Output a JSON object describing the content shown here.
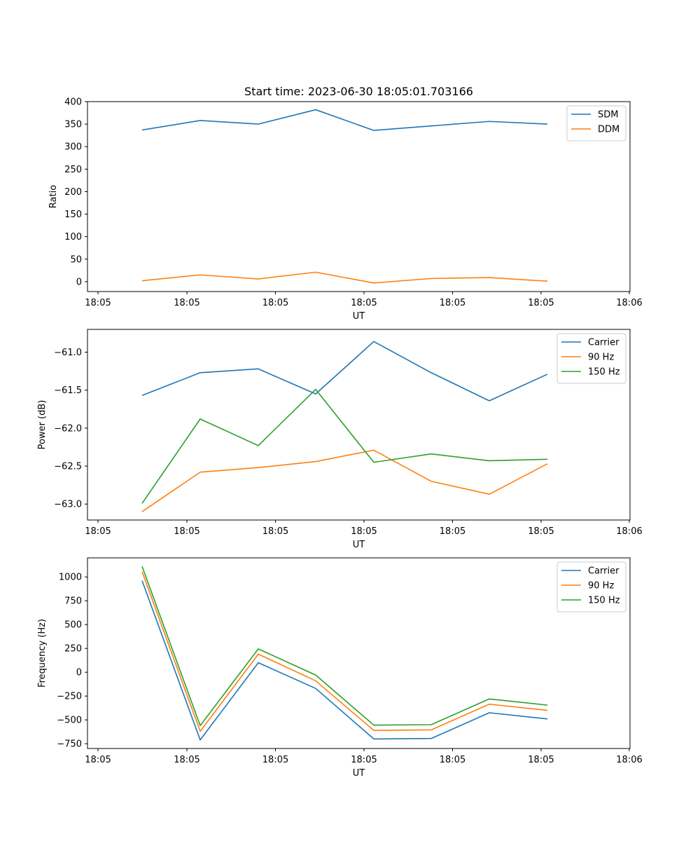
{
  "title": "Start time: 2023-06-30 18:05:01.703166",
  "chart_data": [
    {
      "type": "line",
      "xlabel": "UT",
      "ylabel": "Ratio",
      "x_tick_labels": [
        "18:05",
        "18:05",
        "18:05",
        "18:05",
        "18:05",
        "18:05",
        "18:06"
      ],
      "ylim": [
        -22,
        400
      ],
      "y_ticks": [
        0,
        50,
        100,
        150,
        200,
        250,
        300,
        350,
        400
      ],
      "y_tick_labels": [
        "0",
        "50",
        "100",
        "150",
        "200",
        "250",
        "300",
        "350",
        "400"
      ],
      "legend_position": "top-right",
      "grid": false,
      "series": [
        {
          "name": "SDM",
          "color": "#1f77b4",
          "values": [
            337,
            358,
            350,
            382,
            336,
            346,
            356,
            350
          ]
        },
        {
          "name": "DDM",
          "color": "#ff7f0e",
          "values": [
            2,
            15,
            6,
            21,
            -3,
            7,
            9,
            1
          ]
        }
      ]
    },
    {
      "type": "line",
      "xlabel": "UT",
      "ylabel": "Power (dB)",
      "x_tick_labels": [
        "18:05",
        "18:05",
        "18:05",
        "18:05",
        "18:05",
        "18:05",
        "18:06"
      ],
      "ylim": [
        -63.21,
        -60.7
      ],
      "y_ticks": [
        -63.0,
        -62.5,
        -62.0,
        -61.5,
        -61.0
      ],
      "y_tick_labels": [
        "−63.0",
        "−62.5",
        "−62.0",
        "−61.5",
        "−61.0"
      ],
      "legend_position": "top-right",
      "grid": false,
      "series": [
        {
          "name": "Carrier",
          "color": "#1f77b4",
          "values": [
            -61.57,
            -61.27,
            -61.22,
            -61.55,
            -60.86,
            -61.27,
            -61.64,
            -61.29
          ]
        },
        {
          "name": "90 Hz",
          "color": "#ff7f0e",
          "values": [
            -63.1,
            -62.58,
            -62.52,
            -62.44,
            -62.29,
            -62.7,
            -62.87,
            -62.47
          ]
        },
        {
          "name": "150 Hz",
          "color": "#2ca02c",
          "values": [
            -62.99,
            -61.88,
            -62.23,
            -61.49,
            -62.45,
            -62.34,
            -62.43,
            -62.41
          ]
        }
      ]
    },
    {
      "type": "line",
      "xlabel": "UT",
      "ylabel": "Frequency (Hz)",
      "x_tick_labels": [
        "18:05",
        "18:05",
        "18:05",
        "18:05",
        "18:05",
        "18:05",
        "18:06"
      ],
      "ylim": [
        -800,
        1200
      ],
      "y_ticks": [
        -750,
        -500,
        -250,
        0,
        250,
        500,
        750,
        1000
      ],
      "y_tick_labels": [
        "−750",
        "−500",
        "−250",
        "0",
        "250",
        "500",
        "750",
        "1000"
      ],
      "legend_position": "top-right",
      "grid": false,
      "series": [
        {
          "name": "Carrier",
          "color": "#1f77b4",
          "values": [
            960,
            -710,
            100,
            -170,
            -700,
            -695,
            -425,
            -490
          ]
        },
        {
          "name": "90 Hz",
          "color": "#ff7f0e",
          "values": [
            1055,
            -620,
            190,
            -90,
            -610,
            -605,
            -335,
            -400
          ]
        },
        {
          "name": "150 Hz",
          "color": "#2ca02c",
          "values": [
            1110,
            -560,
            245,
            -30,
            -555,
            -550,
            -280,
            -345
          ]
        }
      ]
    }
  ]
}
